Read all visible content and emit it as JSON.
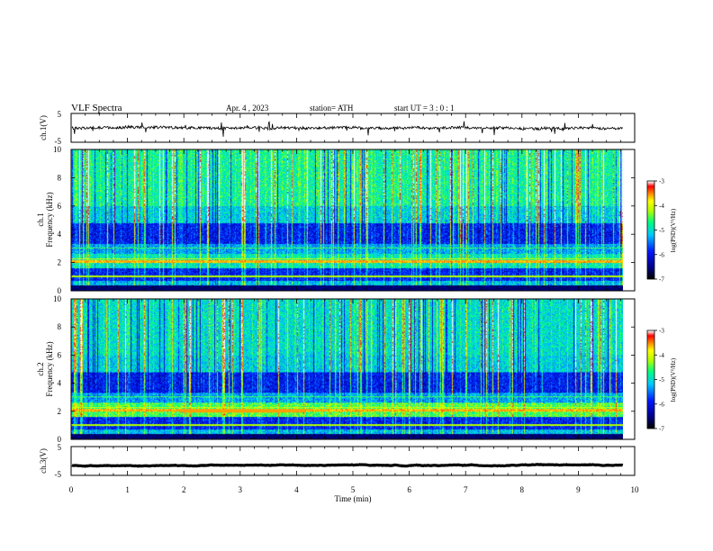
{
  "header": {
    "title": "VLF  Spectra",
    "date": "Apr. 4  , 2023",
    "station": "station= ATH",
    "start": "start  UT  =    3  : 0   : 1"
  },
  "chart_data": [
    {
      "type": "line",
      "panel": "waveform-ch1",
      "ylabel": "ch.1(V)",
      "ylim": [
        -5,
        5
      ],
      "y_ticks": [
        "5",
        "-5"
      ],
      "baseline": 0,
      "color": "#000000"
    },
    {
      "type": "heatmap",
      "panel": "spectrogram-ch1",
      "ylabel": "ch.1\nFrequency (kHz)",
      "ylim": [
        0,
        10
      ],
      "y_ticks": [
        "0",
        "2",
        "4",
        "6",
        "8",
        "10"
      ],
      "colorbar": {
        "label": "log(PSD)(V²/Hz)",
        "range": [
          -7,
          -3
        ],
        "ticks": [
          "-3",
          "-4",
          "-5",
          "-6",
          "-7"
        ]
      },
      "colormap": [
        "#000000",
        "#00008c",
        "#0018ff",
        "#00c8ff",
        "#00ff80",
        "#b4ff00",
        "#ffff00",
        "#ff8000",
        "#ff0000",
        "#ffffff"
      ]
    },
    {
      "type": "heatmap",
      "panel": "spectrogram-ch2",
      "ylabel": "ch.2\nFrequency (kHz)",
      "ylim": [
        0,
        10
      ],
      "y_ticks": [
        "0",
        "2",
        "4",
        "6",
        "8",
        "10"
      ],
      "colorbar": {
        "label": "log(PSD)(V²/Hz)",
        "range": [
          -7,
          -3
        ],
        "ticks": [
          "-3",
          "-4",
          "-5",
          "-6",
          "-7"
        ]
      }
    },
    {
      "type": "line",
      "panel": "waveform-ch3",
      "ylabel": "ch.3(V)",
      "ylim": [
        -5,
        5
      ],
      "y_ticks": [
        "5",
        "-5"
      ],
      "baseline": -1.5,
      "color": "#000000"
    }
  ],
  "x_axis": {
    "label": "Time  (min)",
    "xlim": [
      0,
      10
    ],
    "ticks": [
      "0",
      "1",
      "2",
      "3",
      "4",
      "5",
      "6",
      "7",
      "8",
      "9",
      "10"
    ],
    "data_end": 9.8
  }
}
